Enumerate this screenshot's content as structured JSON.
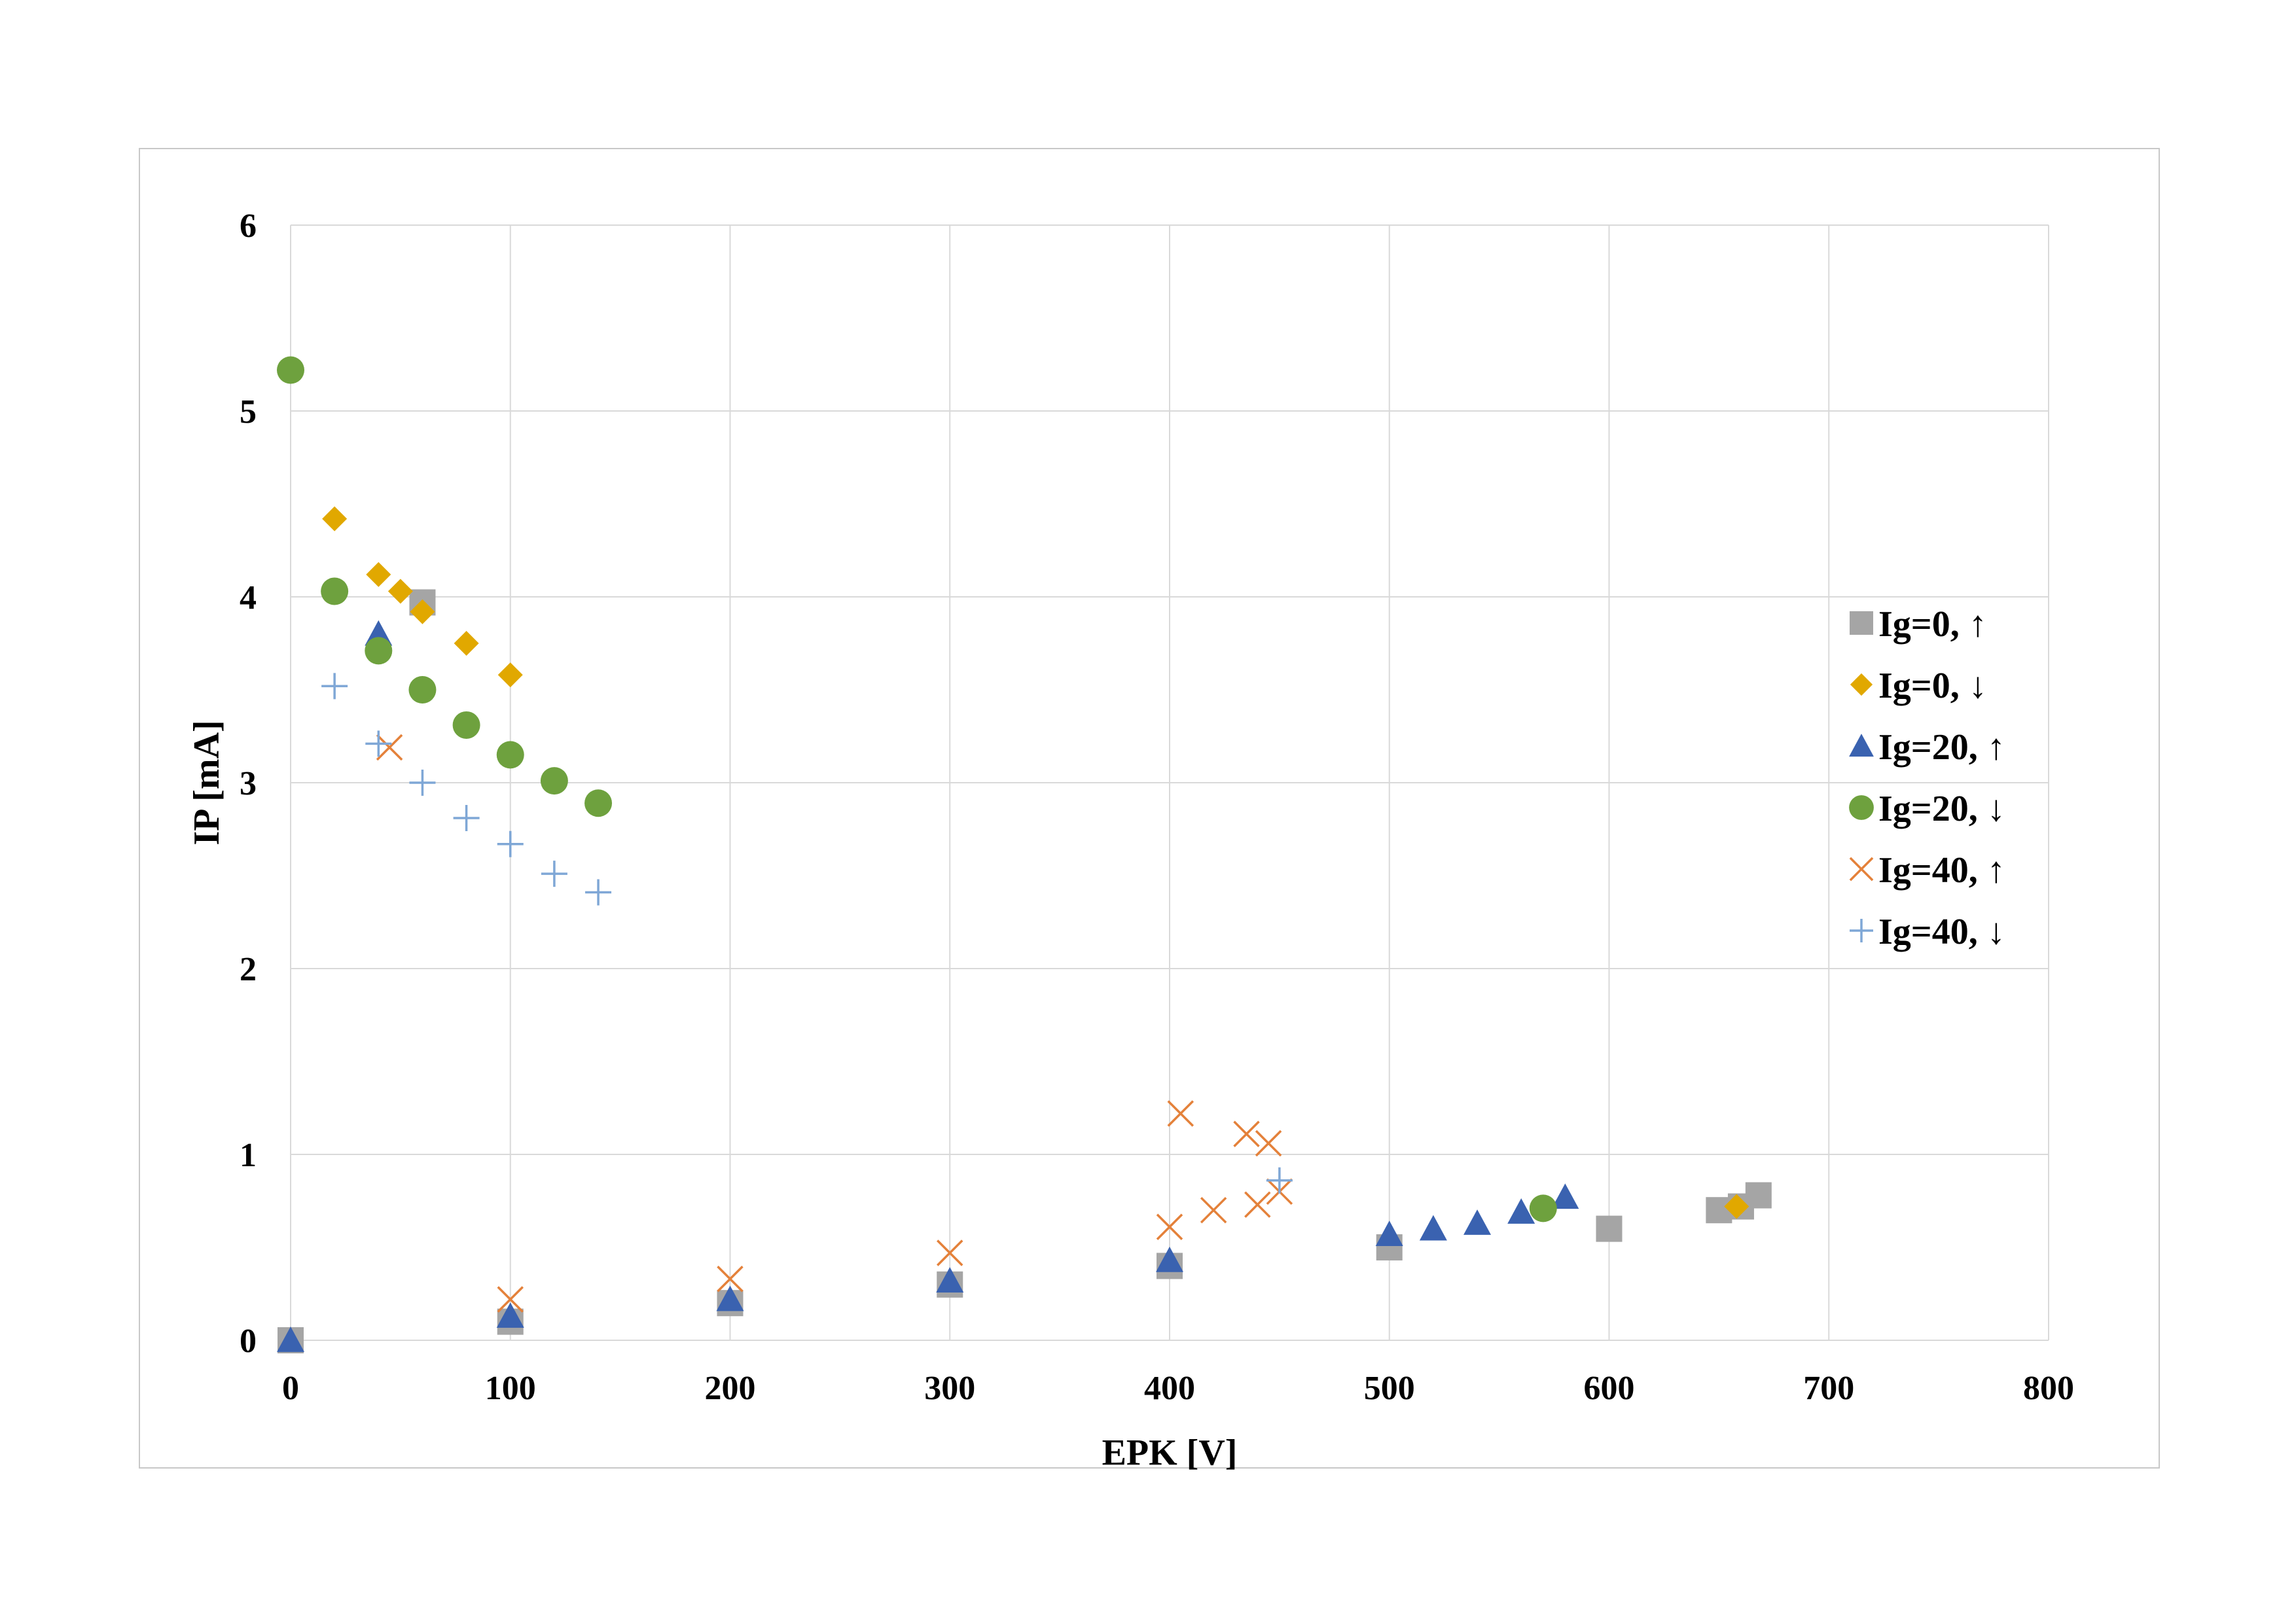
{
  "chart_data": {
    "type": "scatter",
    "xlabel": "EPK [V]",
    "ylabel": "IP [mA]",
    "xlim": [
      0,
      800
    ],
    "ylim": [
      0,
      6
    ],
    "x_ticks": [
      "0",
      "100",
      "200",
      "300",
      "400",
      "500",
      "600",
      "700",
      "800"
    ],
    "y_ticks": [
      "0",
      "1",
      "2",
      "3",
      "4",
      "5",
      "6"
    ],
    "grid": true,
    "legend_position": "right",
    "series": [
      {
        "name": "Ig=0, ↑",
        "marker": "square",
        "color": "#a5a5a5",
        "points": [
          [
            0,
            0
          ],
          [
            60,
            3.97
          ],
          [
            100,
            0.1
          ],
          [
            200,
            0.2
          ],
          [
            300,
            0.3
          ],
          [
            400,
            0.4
          ],
          [
            500,
            0.5
          ],
          [
            600,
            0.6
          ],
          [
            650,
            0.7
          ],
          [
            660,
            0.72
          ],
          [
            668,
            0.78
          ]
        ]
      },
      {
        "name": "Ig=0, ↓",
        "marker": "diamond",
        "color": "#e1a800",
        "points": [
          [
            20,
            4.42
          ],
          [
            40,
            4.12
          ],
          [
            50,
            4.03
          ],
          [
            60,
            3.92
          ],
          [
            80,
            3.75
          ],
          [
            100,
            3.58
          ],
          [
            658,
            0.72
          ]
        ]
      },
      {
        "name": "Ig=20, ↑",
        "marker": "triangle",
        "color": "#3a62b0",
        "points": [
          [
            0,
            0
          ],
          [
            40,
            3.8
          ],
          [
            100,
            0.13
          ],
          [
            200,
            0.22
          ],
          [
            300,
            0.32
          ],
          [
            400,
            0.43
          ],
          [
            500,
            0.57
          ],
          [
            520,
            0.6
          ],
          [
            540,
            0.63
          ],
          [
            560,
            0.69
          ],
          [
            580,
            0.77
          ]
        ]
      },
      {
        "name": "Ig=20, ↓",
        "marker": "circle",
        "color": "#6ea13e",
        "points": [
          [
            0,
            5.22
          ],
          [
            20,
            4.03
          ],
          [
            40,
            3.71
          ],
          [
            60,
            3.5
          ],
          [
            80,
            3.31
          ],
          [
            100,
            3.15
          ],
          [
            120,
            3.01
          ],
          [
            140,
            2.89
          ],
          [
            570,
            0.71
          ]
        ]
      },
      {
        "name": "Ig=40, ↑",
        "marker": "x",
        "color": "#e4813a",
        "points": [
          [
            45,
            3.19
          ],
          [
            100,
            0.22
          ],
          [
            200,
            0.33
          ],
          [
            300,
            0.47
          ],
          [
            400,
            0.61
          ],
          [
            405,
            1.22
          ],
          [
            420,
            0.7
          ],
          [
            435,
            1.11
          ],
          [
            440,
            0.73
          ],
          [
            445,
            1.06
          ],
          [
            450,
            0.8
          ]
        ]
      },
      {
        "name": "Ig=40, ↓",
        "marker": "plus",
        "color": "#7fa7d6",
        "points": [
          [
            20,
            3.52
          ],
          [
            40,
            3.21
          ],
          [
            60,
            3.0
          ],
          [
            80,
            2.81
          ],
          [
            100,
            2.67
          ],
          [
            120,
            2.51
          ],
          [
            140,
            2.41
          ],
          [
            450,
            0.86
          ]
        ]
      }
    ]
  }
}
